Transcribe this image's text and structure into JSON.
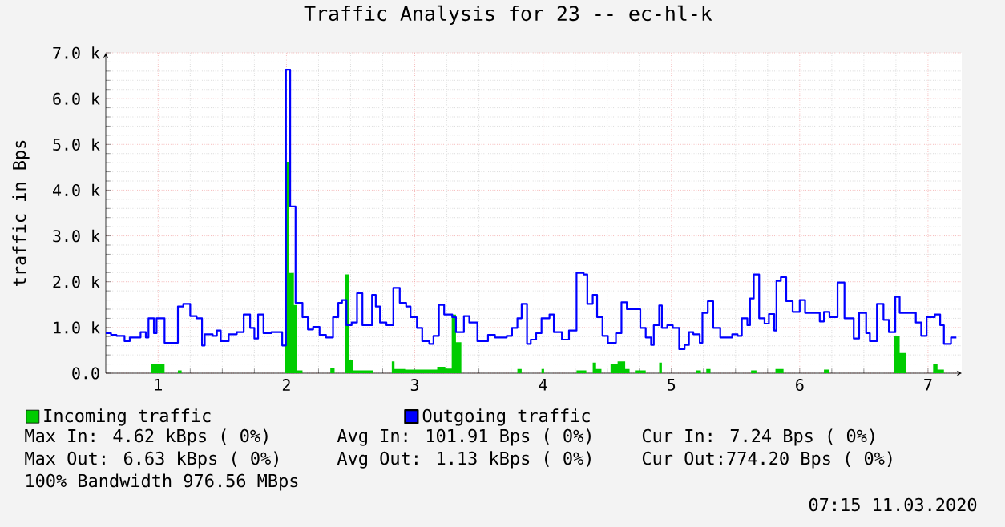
{
  "chart_data": {
    "type": "step",
    "title": "Traffic Analysis for 23 -- ec-hl-k",
    "ylabel": "traffic in Bps",
    "xlim": [
      0.592,
      7.263
    ],
    "xticks": [
      1,
      2,
      3,
      4,
      5,
      6,
      7
    ],
    "ylim": [
      0,
      7000
    ],
    "yticks": [
      {
        "value": 0,
        "label": "0.0"
      },
      {
        "value": 1000,
        "label": "1.0 k"
      },
      {
        "value": 2000,
        "label": "2.0 k"
      },
      {
        "value": 3000,
        "label": "3.0 k"
      },
      {
        "value": 4000,
        "label": "4.0 k"
      },
      {
        "value": 5000,
        "label": "5.0 k"
      },
      {
        "value": 6000,
        "label": "6.0 k"
      },
      {
        "value": 7000,
        "label": "7.0 k"
      }
    ],
    "grid": true,
    "legend": "bottom",
    "series": [
      {
        "name": "Incoming traffic",
        "type": "area",
        "color": "#00cc00",
        "x": [
          0.592,
          0.946,
          1.05,
          1.154,
          1.183,
          1.987,
          2.017,
          2.058,
          2.083,
          2.125,
          2.342,
          2.375,
          2.458,
          2.488,
          2.521,
          2.675,
          2.821,
          2.842,
          2.925,
          3.175,
          3.238,
          3.288,
          3.321,
          3.363,
          3.8,
          3.833,
          3.988,
          4.008,
          4.261,
          4.337,
          4.387,
          4.413,
          4.455,
          4.526,
          4.581,
          4.64,
          4.674,
          4.716,
          4.8,
          4.905,
          4.926,
          5.192,
          5.23,
          5.272,
          5.305,
          5.621,
          5.663,
          5.811,
          5.874,
          6.189,
          6.232,
          6.737,
          6.779,
          6.829,
          7.04,
          7.074,
          7.124,
          7.221
        ],
        "values": [
          0,
          210,
          0,
          60,
          0,
          4620,
          2190,
          1490,
          60,
          0,
          120,
          0,
          2160,
          290,
          60,
          0,
          260,
          90,
          80,
          140,
          100,
          1280,
          680,
          0,
          90,
          0,
          90,
          0,
          60,
          0,
          230,
          90,
          0,
          210,
          260,
          90,
          0,
          60,
          0,
          230,
          0,
          60,
          0,
          90,
          0,
          60,
          0,
          90,
          0,
          80,
          0,
          820,
          440,
          0,
          200,
          80,
          0,
          0
        ]
      },
      {
        "name": "Outgoing traffic",
        "color": "#0000ff",
        "x": [
          0.592,
          0.633,
          0.675,
          0.738,
          0.779,
          0.863,
          0.904,
          0.925,
          0.967,
          0.988,
          1.05,
          1.154,
          1.196,
          1.25,
          1.3,
          1.342,
          1.363,
          1.425,
          1.458,
          1.488,
          1.55,
          1.613,
          1.667,
          1.717,
          1.75,
          1.779,
          1.821,
          1.883,
          1.967,
          1.996,
          2.029,
          2.071,
          2.125,
          2.167,
          2.208,
          2.258,
          2.308,
          2.363,
          2.404,
          2.433,
          2.467,
          2.508,
          2.55,
          2.592,
          2.667,
          2.696,
          2.729,
          2.779,
          2.833,
          2.883,
          2.933,
          2.967,
          3.017,
          3.058,
          3.113,
          3.146,
          3.188,
          3.229,
          3.292,
          3.321,
          3.383,
          3.425,
          3.488,
          3.571,
          3.625,
          3.717,
          3.758,
          3.8,
          3.833,
          3.875,
          3.904,
          3.946,
          3.988,
          4.05,
          4.084,
          4.147,
          4.202,
          4.261,
          4.316,
          4.345,
          4.387,
          4.421,
          4.463,
          4.505,
          4.568,
          4.611,
          4.653,
          4.758,
          4.8,
          4.842,
          4.863,
          4.905,
          4.926,
          4.968,
          5.011,
          5.061,
          5.103,
          5.137,
          5.171,
          5.221,
          5.242,
          5.284,
          5.326,
          5.381,
          5.474,
          5.516,
          5.549,
          5.592,
          5.613,
          5.642,
          5.684,
          5.726,
          5.76,
          5.802,
          5.819,
          5.853,
          5.895,
          5.945,
          6.0,
          6.042,
          6.156,
          6.189,
          6.232,
          6.295,
          6.349,
          6.421,
          6.463,
          6.518,
          6.547,
          6.602,
          6.653,
          6.695,
          6.745,
          6.779,
          6.905,
          6.947,
          6.989,
          7.053,
          7.095,
          7.124,
          7.179,
          7.221
        ],
        "values": [
          875,
          840,
          817,
          700,
          782,
          898,
          782,
          1202,
          875,
          1202,
          665,
          1459,
          1517,
          1249,
          1202,
          607,
          852,
          817,
          933,
          700,
          852,
          898,
          1284,
          992,
          758,
          1284,
          875,
          898,
          607,
          6630,
          3641,
          1540,
          1225,
          957,
          1015,
          840,
          782,
          1225,
          1540,
          1599,
          1050,
          1108,
          1750,
          1050,
          1715,
          1459,
          1108,
          1050,
          1867,
          1540,
          1459,
          1225,
          992,
          700,
          642,
          817,
          1494,
          1284,
          1225,
          898,
          1249,
          1108,
          700,
          840,
          782,
          817,
          992,
          1202,
          1517,
          642,
          735,
          875,
          1202,
          1284,
          898,
          735,
          933,
          2194,
          2159,
          1517,
          1715,
          1225,
          817,
          665,
          875,
          1552,
          1400,
          992,
          782,
          618,
          1050,
          1482,
          992,
          1050,
          992,
          525,
          618,
          898,
          852,
          665,
          1319,
          1575,
          992,
          782,
          852,
          817,
          1202,
          1050,
          1634,
          2159,
          1202,
          1085,
          1295,
          933,
          2019,
          2100,
          1575,
          1342,
          1599,
          1319,
          1132,
          1342,
          1225,
          1984,
          1202,
          758,
          1319,
          875,
          700,
          1517,
          1167,
          898,
          1669,
          1319,
          1108,
          817,
          1225,
          1284,
          1050,
          642,
          782,
          782
        ]
      }
    ],
    "annotations": [
      "Max In: 4.62 kBps ( 0%)",
      "Avg In: 101.91 Bps ( 0%)",
      "Cur In: 7.24 Bps ( 0%)",
      "Max Out: 6.63 kBps ( 0%)",
      "Avg Out: 1.13 kBps ( 0%)",
      "Cur Out:774.20 Bps ( 0%)",
      "100% Bandwidth 976.56 MBps",
      "07:15 11.03.2020"
    ]
  }
}
